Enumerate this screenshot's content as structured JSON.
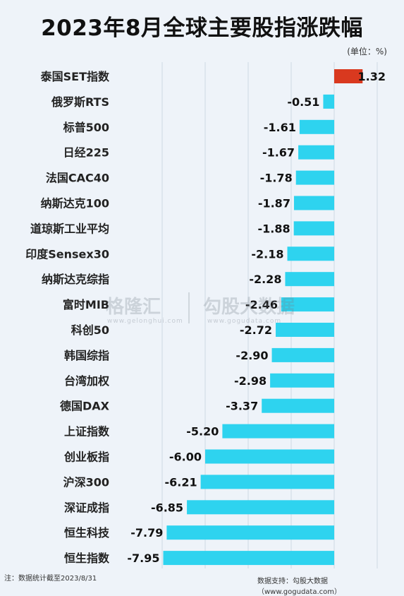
{
  "header": {
    "title": "2023年8月全球主要股指涨跌幅",
    "unit": "(单位：%)"
  },
  "watermark": {
    "brand1": "格隆汇",
    "brand1_sub": "www.gelonghui.com",
    "brand2": "勾股大数据",
    "brand2_sub": "www.gogudata.com"
  },
  "footer": {
    "note": "注：数据统计截至2023/8/31",
    "source": "数据支持：勾股大数据（www.gogudata.com）"
  },
  "colors": {
    "positive": "#d9391f",
    "negative": "#2ed3ef",
    "grid": "#cfd8e2"
  },
  "chart_data": {
    "type": "bar",
    "orientation": "horizontal",
    "categories": [
      "泰国SET指数",
      "俄罗斯RTS",
      "标普500",
      "日经225",
      "法国CAC40",
      "纳斯达克100",
      "道琼斯工业平均",
      "印度Sensex30",
      "纳斯达克综指",
      "富时MIB",
      "科创50",
      "韩国综指",
      "台湾加权",
      "德国DAX",
      "上证指数",
      "创业板指",
      "沪深300",
      "深证成指",
      "恒生科技",
      "恒生指数"
    ],
    "values": [
      1.32,
      -0.51,
      -1.61,
      -1.67,
      -1.78,
      -1.87,
      -1.88,
      -2.18,
      -2.28,
      -2.46,
      -2.72,
      -2.9,
      -2.98,
      -3.37,
      -5.2,
      -6.0,
      -6.21,
      -6.85,
      -7.79,
      -7.95
    ],
    "labels": [
      "1.32",
      "-0.51",
      "-1.61",
      "-1.67",
      "-1.78",
      "-1.87",
      "-1.88",
      "-2.18",
      "-2.28",
      "-2.46",
      "-2.72",
      "-2.90",
      "-2.98",
      "-3.37",
      "-5.20",
      "-6.00",
      "-6.21",
      "-6.85",
      "-7.79",
      "-7.95"
    ],
    "xlim": [
      -8,
      2
    ],
    "grid": true,
    "legend": false
  }
}
